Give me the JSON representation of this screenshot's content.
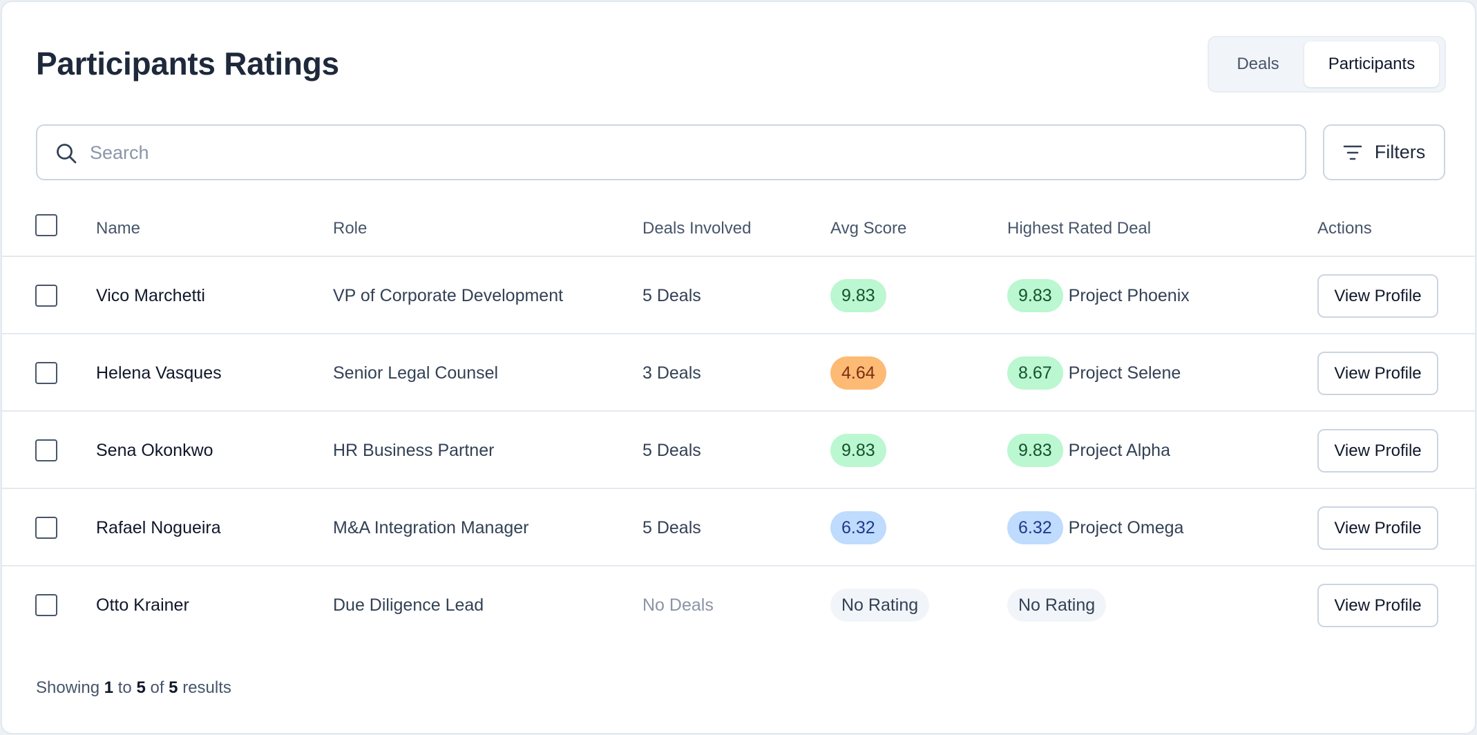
{
  "page": {
    "title": "Participants Ratings"
  },
  "view_toggle": {
    "deals_label": "Deals",
    "participants_label": "Participants",
    "selected": "Participants"
  },
  "search": {
    "placeholder": "Search",
    "value": ""
  },
  "filters": {
    "label": "Filters"
  },
  "table": {
    "columns": {
      "name": "Name",
      "role": "Role",
      "deals": "Deals Involved",
      "avg": "Avg Score",
      "highest": "Highest Rated Deal",
      "actions": "Actions"
    },
    "rows": [
      {
        "name": "Vico Marchetti",
        "role": "VP of Corporate Development",
        "deals": "5 Deals",
        "avg": "9.83",
        "avg_color": "green",
        "high_score": "9.83",
        "high_color": "green",
        "high_project": "Project Phoenix",
        "action": "View Profile"
      },
      {
        "name": "Helena Vasques",
        "role": "Senior Legal Counsel",
        "deals": "3 Deals",
        "avg": "4.64",
        "avg_color": "orange",
        "high_score": "8.67",
        "high_color": "green",
        "high_project": "Project Selene",
        "action": "View Profile"
      },
      {
        "name": "Sena Okonkwo",
        "role": "HR Business Partner",
        "deals": "5 Deals",
        "avg": "9.83",
        "avg_color": "green",
        "high_score": "9.83",
        "high_color": "green",
        "high_project": "Project Alpha",
        "action": "View Profile"
      },
      {
        "name": "Rafael Nogueira",
        "role": "M&A Integration Manager",
        "deals": "5 Deals",
        "avg": "6.32",
        "avg_color": "blue",
        "high_score": "6.32",
        "high_color": "blue",
        "high_project": "Project Omega",
        "action": "View Profile"
      },
      {
        "name": "Otto Krainer",
        "role": "Due Diligence Lead",
        "deals": "No Deals",
        "avg": "No Rating",
        "avg_color": "gray",
        "high_score": "No Rating",
        "high_color": "gray",
        "high_project": "",
        "action": "View Profile"
      }
    ]
  },
  "pagination": {
    "prefix": "Showing",
    "from": "1",
    "to_word": "to",
    "to": "5",
    "of_word": "of",
    "total": "5",
    "suffix": "results"
  },
  "colors": {
    "green_pill": "#bbf7d0",
    "orange_pill": "#fdba74",
    "blue_pill": "#bfdbfe",
    "gray_pill": "#f1f5f9"
  }
}
